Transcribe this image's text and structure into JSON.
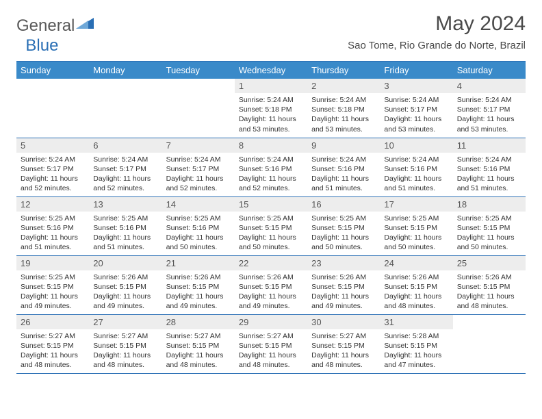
{
  "brand": {
    "general": "General",
    "blue": "Blue"
  },
  "title": "May 2024",
  "location": "Sao Tome, Rio Grande do Norte, Brazil",
  "colors": {
    "header_bg": "#3a8ac9",
    "border": "#2a6fb5",
    "daynum_bg": "#ededed",
    "text": "#333333"
  },
  "weekdays": [
    "Sunday",
    "Monday",
    "Tuesday",
    "Wednesday",
    "Thursday",
    "Friday",
    "Saturday"
  ],
  "weeks": [
    [
      null,
      null,
      null,
      {
        "n": "1",
        "sr": "5:24 AM",
        "ss": "5:18 PM",
        "dl": "11 hours and 53 minutes."
      },
      {
        "n": "2",
        "sr": "5:24 AM",
        "ss": "5:18 PM",
        "dl": "11 hours and 53 minutes."
      },
      {
        "n": "3",
        "sr": "5:24 AM",
        "ss": "5:17 PM",
        "dl": "11 hours and 53 minutes."
      },
      {
        "n": "4",
        "sr": "5:24 AM",
        "ss": "5:17 PM",
        "dl": "11 hours and 53 minutes."
      }
    ],
    [
      {
        "n": "5",
        "sr": "5:24 AM",
        "ss": "5:17 PM",
        "dl": "11 hours and 52 minutes."
      },
      {
        "n": "6",
        "sr": "5:24 AM",
        "ss": "5:17 PM",
        "dl": "11 hours and 52 minutes."
      },
      {
        "n": "7",
        "sr": "5:24 AM",
        "ss": "5:17 PM",
        "dl": "11 hours and 52 minutes."
      },
      {
        "n": "8",
        "sr": "5:24 AM",
        "ss": "5:16 PM",
        "dl": "11 hours and 52 minutes."
      },
      {
        "n": "9",
        "sr": "5:24 AM",
        "ss": "5:16 PM",
        "dl": "11 hours and 51 minutes."
      },
      {
        "n": "10",
        "sr": "5:24 AM",
        "ss": "5:16 PM",
        "dl": "11 hours and 51 minutes."
      },
      {
        "n": "11",
        "sr": "5:24 AM",
        "ss": "5:16 PM",
        "dl": "11 hours and 51 minutes."
      }
    ],
    [
      {
        "n": "12",
        "sr": "5:25 AM",
        "ss": "5:16 PM",
        "dl": "11 hours and 51 minutes."
      },
      {
        "n": "13",
        "sr": "5:25 AM",
        "ss": "5:16 PM",
        "dl": "11 hours and 51 minutes."
      },
      {
        "n": "14",
        "sr": "5:25 AM",
        "ss": "5:16 PM",
        "dl": "11 hours and 50 minutes."
      },
      {
        "n": "15",
        "sr": "5:25 AM",
        "ss": "5:15 PM",
        "dl": "11 hours and 50 minutes."
      },
      {
        "n": "16",
        "sr": "5:25 AM",
        "ss": "5:15 PM",
        "dl": "11 hours and 50 minutes."
      },
      {
        "n": "17",
        "sr": "5:25 AM",
        "ss": "5:15 PM",
        "dl": "11 hours and 50 minutes."
      },
      {
        "n": "18",
        "sr": "5:25 AM",
        "ss": "5:15 PM",
        "dl": "11 hours and 50 minutes."
      }
    ],
    [
      {
        "n": "19",
        "sr": "5:25 AM",
        "ss": "5:15 PM",
        "dl": "11 hours and 49 minutes."
      },
      {
        "n": "20",
        "sr": "5:26 AM",
        "ss": "5:15 PM",
        "dl": "11 hours and 49 minutes."
      },
      {
        "n": "21",
        "sr": "5:26 AM",
        "ss": "5:15 PM",
        "dl": "11 hours and 49 minutes."
      },
      {
        "n": "22",
        "sr": "5:26 AM",
        "ss": "5:15 PM",
        "dl": "11 hours and 49 minutes."
      },
      {
        "n": "23",
        "sr": "5:26 AM",
        "ss": "5:15 PM",
        "dl": "11 hours and 49 minutes."
      },
      {
        "n": "24",
        "sr": "5:26 AM",
        "ss": "5:15 PM",
        "dl": "11 hours and 48 minutes."
      },
      {
        "n": "25",
        "sr": "5:26 AM",
        "ss": "5:15 PM",
        "dl": "11 hours and 48 minutes."
      }
    ],
    [
      {
        "n": "26",
        "sr": "5:27 AM",
        "ss": "5:15 PM",
        "dl": "11 hours and 48 minutes."
      },
      {
        "n": "27",
        "sr": "5:27 AM",
        "ss": "5:15 PM",
        "dl": "11 hours and 48 minutes."
      },
      {
        "n": "28",
        "sr": "5:27 AM",
        "ss": "5:15 PM",
        "dl": "11 hours and 48 minutes."
      },
      {
        "n": "29",
        "sr": "5:27 AM",
        "ss": "5:15 PM",
        "dl": "11 hours and 48 minutes."
      },
      {
        "n": "30",
        "sr": "5:27 AM",
        "ss": "5:15 PM",
        "dl": "11 hours and 48 minutes."
      },
      {
        "n": "31",
        "sr": "5:28 AM",
        "ss": "5:15 PM",
        "dl": "11 hours and 47 minutes."
      },
      null
    ]
  ],
  "labels": {
    "sunrise": "Sunrise:",
    "sunset": "Sunset:",
    "daylight": "Daylight:"
  }
}
